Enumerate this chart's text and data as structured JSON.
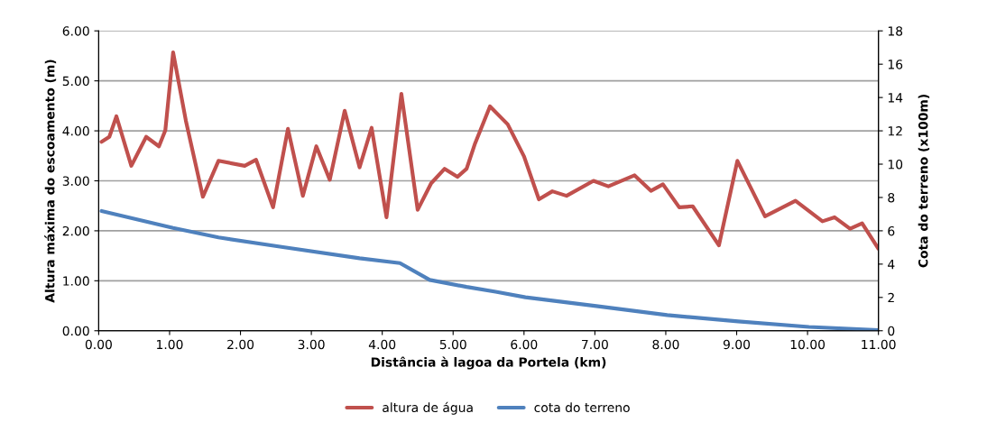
{
  "chart_data": {
    "type": "line",
    "xlabel": "Distância à lagoa da Portela (km)",
    "ylabel": "Altura máxima do escoamento (m)",
    "y2label": "Cota do terreno (x100m)",
    "series": [
      {
        "name": "altura de água",
        "color": "#c0504d",
        "x": [
          0.04,
          0.15,
          0.25,
          0.46,
          0.67,
          0.85,
          0.94,
          1.05,
          1.23,
          1.47,
          1.69,
          2.06,
          2.22,
          2.46,
          2.67,
          2.88,
          3.07,
          3.26,
          3.47,
          3.68,
          3.85,
          4.06,
          4.27,
          4.5,
          4.69,
          4.88,
          5.06,
          5.19,
          5.31,
          5.52,
          5.77,
          6.0,
          6.21,
          6.4,
          6.6,
          6.98,
          7.19,
          7.56,
          7.79,
          7.96,
          8.19,
          8.38,
          8.75,
          9.01,
          9.4,
          9.83,
          10.21,
          10.38,
          10.6,
          10.77,
          11.0
        ],
        "values": [
          3.78,
          3.88,
          4.29,
          3.3,
          3.88,
          3.69,
          4.01,
          5.57,
          4.2,
          2.68,
          3.4,
          3.3,
          3.42,
          2.47,
          4.04,
          2.7,
          3.69,
          3.02,
          4.4,
          3.27,
          4.06,
          2.27,
          4.74,
          2.42,
          2.95,
          3.24,
          3.08,
          3.24,
          3.75,
          4.49,
          4.13,
          3.49,
          2.63,
          2.79,
          2.7,
          3.0,
          2.89,
          3.11,
          2.8,
          2.93,
          2.47,
          2.49,
          1.71,
          3.4,
          2.29,
          2.6,
          2.19,
          2.27,
          2.04,
          2.15,
          1.64
        ]
      },
      {
        "name": "cota do terreno",
        "color": "#4f81bd",
        "axis": "y2",
        "x": [
          0.04,
          1.05,
          1.69,
          2.6,
          3.68,
          4.25,
          4.67,
          5.19,
          5.6,
          6.02,
          7.02,
          8.02,
          9.02,
          10.02,
          11.0
        ],
        "values": [
          7.19,
          6.17,
          5.6,
          5.02,
          4.35,
          4.06,
          3.05,
          2.63,
          2.34,
          2.01,
          1.48,
          0.94,
          0.56,
          0.23,
          0.04
        ]
      }
    ],
    "xlim": [
      0,
      11
    ],
    "xticks": [
      {
        "value": 0,
        "label": "0.00"
      },
      {
        "value": 1,
        "label": "1.00"
      },
      {
        "value": 2,
        "label": "2.00"
      },
      {
        "value": 3,
        "label": "3.00"
      },
      {
        "value": 4,
        "label": "4.00"
      },
      {
        "value": 5,
        "label": "5.00"
      },
      {
        "value": 6,
        "label": "6.00"
      },
      {
        "value": 7,
        "label": "7.00"
      },
      {
        "value": 8,
        "label": "8.00"
      },
      {
        "value": 9,
        "label": "9.00"
      },
      {
        "value": 10,
        "label": "10.00"
      },
      {
        "value": 11,
        "label": "11.00"
      }
    ],
    "ylim": [
      0,
      6
    ],
    "yticks": [
      {
        "value": 0,
        "label": "0.00"
      },
      {
        "value": 1,
        "label": "1.00"
      },
      {
        "value": 2,
        "label": "2.00"
      },
      {
        "value": 3,
        "label": "3.00"
      },
      {
        "value": 4,
        "label": "4.00"
      },
      {
        "value": 5,
        "label": "5.00"
      },
      {
        "value": 6,
        "label": "6.00"
      }
    ],
    "y2lim": [
      0,
      18
    ],
    "y2ticks": [
      0,
      2,
      4,
      6,
      8,
      10,
      12,
      14,
      16,
      18
    ],
    "grid": "y",
    "legend": "bottom",
    "marker": "none",
    "line_style": "solid"
  }
}
